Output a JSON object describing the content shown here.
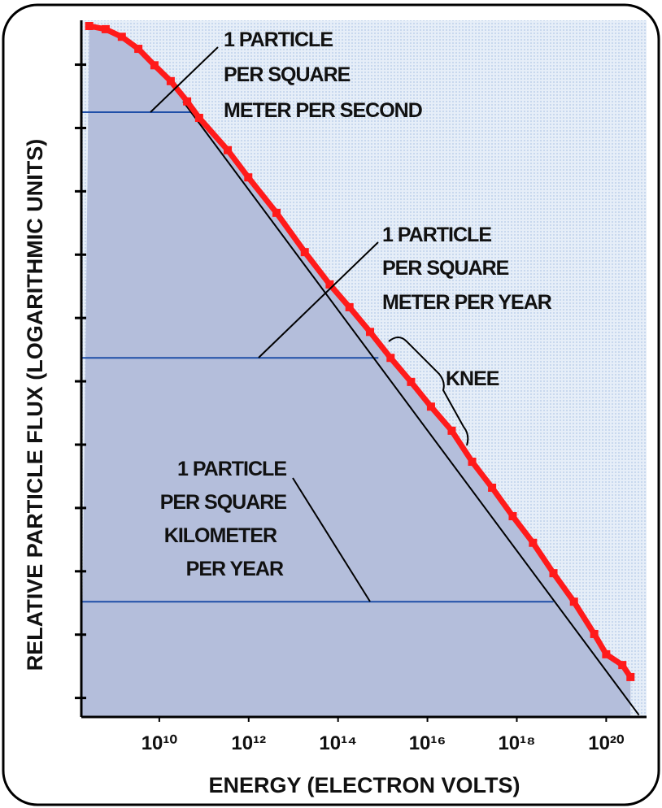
{
  "chart_data": {
    "type": "scatter",
    "xlabel": "ENERGY (ELECTRON VOLTS)",
    "ylabel": "RELATIVE PARTICLE FLUX (LOGARITHMIC UNITS)",
    "xscale": "log",
    "xlim": [
      180000000.0,
      8e+20
    ],
    "ylim": [
      -0.3,
      10.7
    ],
    "xticks": [
      {
        "value": 10000000000.0,
        "label": "10¹⁰"
      },
      {
        "value": 1000000000000.0,
        "label": "10¹²"
      },
      {
        "value": 100000000000000.0,
        "label": "10¹⁴"
      },
      {
        "value": 1e+16,
        "label": "10¹⁶"
      },
      {
        "value": 1e+18,
        "label": "10¹⁸"
      },
      {
        "value": 1e+20,
        "label": "10²⁰"
      }
    ],
    "yticks": [
      0,
      1,
      2,
      3,
      4,
      5,
      6,
      7,
      8,
      9,
      10
    ],
    "series": [
      {
        "color": "#ff1a1a",
        "x": [
          270000000.0,
          630000000.0,
          1450000000.0,
          3400000000.0,
          7800000000.0,
          18000000000.0,
          42000000000.0,
          78000000000.0,
          340000000000.0,
          980000000000.0,
          4200000000000.0,
          18000000000000.0,
          65000000000000.0,
          180000000000000.0,
          520000000000000.0,
          1500000000000000.0,
          4300000000000000.0,
          1.2e+16,
          3.5e+16,
          1e+17,
          2.8e+17,
          8.1e+17,
          2.3e+18,
          6.6e+18,
          1.9e+19,
          5.4e+19,
          1e+20,
          2.3e+20,
          3.5e+20
        ],
        "values": [
          10.61,
          10.56,
          10.44,
          10.25,
          9.99,
          9.74,
          9.42,
          9.16,
          8.65,
          8.22,
          7.66,
          7.04,
          6.53,
          6.17,
          5.78,
          5.37,
          4.99,
          4.6,
          4.22,
          3.73,
          3.32,
          2.87,
          2.45,
          1.97,
          1.52,
          1.01,
          0.69,
          0.52,
          0.33
        ]
      }
    ],
    "reference_line": {
      "x": [
        34000000000.0,
        5.4e+20
      ],
      "y": [
        9.42,
        -0.27
      ],
      "color": "#000000"
    },
    "fill_color": "#b4bedb",
    "level_color": "#1f4fa8",
    "annotations": [
      {
        "lines": [
          "1 PARTICLE",
          "PER SQUARE",
          "METER PER SECOND"
        ],
        "y": 9.25,
        "x_end": 51000000000.0
      },
      {
        "lines": [
          "1 PARTICLE",
          "PER SQUARE",
          "METER PER YEAR"
        ],
        "y": 5.37,
        "x_end": 800000000000000.0
      },
      {
        "lines": [
          "1 PARTICLE",
          "PER SQUARE",
          "KILOMETER",
          "PER YEAR"
        ],
        "y": 1.52,
        "x_end": 6.6e+18
      }
    ],
    "knee_label": "KNEE"
  }
}
